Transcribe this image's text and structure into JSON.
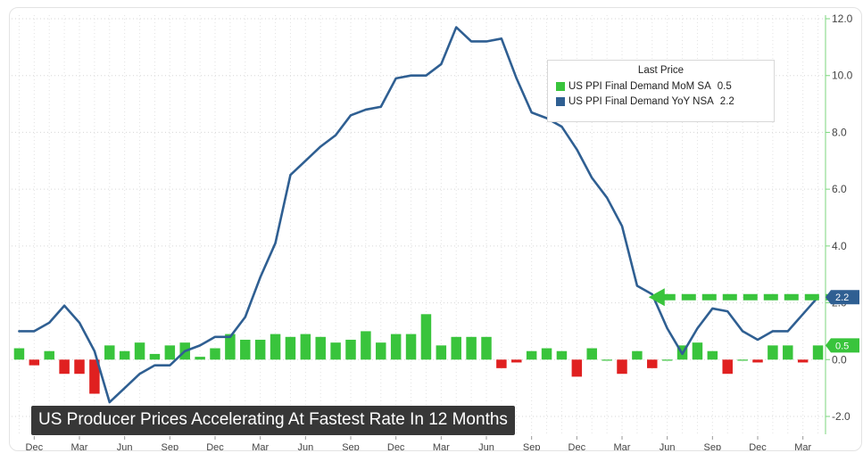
{
  "colors": {
    "mom_bar_positive": "#39c43c",
    "mom_bar_negative": "#e02020",
    "yoy_line": "#2f5f92",
    "arrow": "#39c43c",
    "grid": "#e8e8e8",
    "axis_text": "#444444",
    "badge_blue": "#2f5f92",
    "badge_green": "#39c43c"
  },
  "caption": "US Producer Prices Accelerating At Fastest Rate In 12 Months",
  "legend": {
    "title": "Last Price",
    "items": [
      {
        "label": "US PPI Final Demand MoM SA",
        "value": "0.5",
        "color": "#39c43c"
      },
      {
        "label": "US PPI Final Demand YoY NSA",
        "value": "2.2",
        "color": "#2f5f92"
      }
    ]
  },
  "badges": {
    "yoy": "2.2",
    "mom": "0.5"
  },
  "chart_data": {
    "type": "bar",
    "y_axis": {
      "ticks": [
        "-2.0",
        "0.0",
        "2.0",
        "4.0",
        "6.0",
        "8.0",
        "10.0",
        "12.0"
      ],
      "ylim": [
        -2.0,
        12.0
      ],
      "side": "right"
    },
    "x_tick_labels": [
      "Dec",
      "Mar",
      "Jun",
      "Sep",
      "Dec",
      "Mar",
      "Jun",
      "Sep",
      "Dec",
      "Mar",
      "Jun",
      "Sep",
      "Dec",
      "Mar",
      "Jun",
      "Sep",
      "Dec",
      "Mar"
    ],
    "grid": true,
    "legend_position": "top-right",
    "series": [
      {
        "name": "US PPI Final Demand MoM SA",
        "kind": "bar",
        "values": [
          0.4,
          -0.2,
          0.3,
          -0.5,
          -0.5,
          -1.2,
          0.5,
          0.3,
          0.6,
          0.2,
          0.5,
          0.6,
          0.1,
          0.4,
          0.9,
          0.7,
          0.7,
          0.9,
          0.8,
          0.9,
          0.8,
          0.6,
          0.7,
          1.0,
          0.6,
          0.9,
          0.9,
          1.6,
          0.5,
          0.8,
          0.8,
          0.8,
          -0.3,
          -0.1,
          0.3,
          0.4,
          0.3,
          -0.6,
          0.4,
          0.0,
          -0.5,
          0.3,
          -0.3,
          0.0,
          0.5,
          0.6,
          0.3,
          -0.5,
          0.0,
          -0.1,
          0.5,
          0.5,
          -0.1,
          0.5
        ]
      },
      {
        "name": "US PPI Final Demand YoY NSA",
        "kind": "line",
        "values": [
          1.0,
          1.0,
          1.3,
          1.9,
          1.3,
          0.3,
          -1.5,
          -1.0,
          -0.5,
          -0.2,
          -0.2,
          0.3,
          0.5,
          0.8,
          0.8,
          1.5,
          2.9,
          4.1,
          6.5,
          7.0,
          7.5,
          7.9,
          8.6,
          8.8,
          8.9,
          9.9,
          10.0,
          10.0,
          10.4,
          11.7,
          11.2,
          11.2,
          11.3,
          9.9,
          8.7,
          8.5,
          8.2,
          7.4,
          6.4,
          5.7,
          4.7,
          2.6,
          2.3,
          1.1,
          0.2,
          1.1,
          1.8,
          1.7,
          1.0,
          0.7,
          1.0,
          1.0,
          1.6,
          2.2
        ]
      }
    ]
  }
}
